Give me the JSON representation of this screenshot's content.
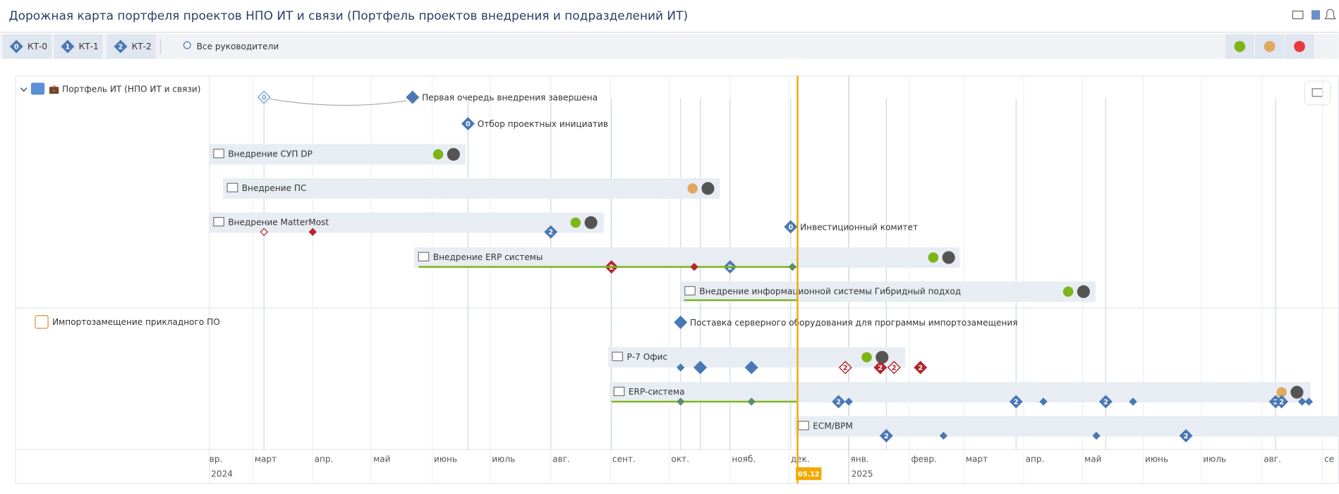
{
  "header": {
    "title": "Дорожная карта портфеля проектов НПО ИТ и связи (Портфель проектов внедрения и подразделений ИТ)"
  },
  "toolbar": {
    "filters": [
      {
        "badge": "0",
        "label": "КТ-0"
      },
      {
        "badge": "1",
        "label": "КТ-1"
      },
      {
        "badge": "2",
        "label": "КТ-2"
      }
    ],
    "managers": "Все руководители"
  },
  "groups": [
    {
      "label": "💼 Портфель ИТ (НПО ИТ и связи)"
    },
    {
      "label": "Импортозамещение прикладного ПО"
    }
  ],
  "milestones": [
    {
      "badge": "0"
    },
    {
      "label": "Первая очередь внедрения завершена"
    },
    {
      "badge": "0",
      "label": "Отбор проектных инициатив"
    },
    {
      "badge": "0",
      "label": "Инвестиционный комитет"
    },
    {
      "label": "Поставка серверного оборудования для программы импортозамещения"
    }
  ],
  "bars": [
    {
      "label": "Внедрение СУП DP",
      "status": "#7cb518",
      "badges": []
    },
    {
      "label": "Внедрение ПС",
      "status": "#e0a960",
      "badges": []
    },
    {
      "label": "Внедрение MatterMost",
      "status": "#7cb518",
      "badges": [
        "2"
      ]
    },
    {
      "label": "Внедрение ERP системы",
      "status": "#7cb518",
      "badges": [
        "2",
        "2"
      ]
    },
    {
      "label": "Внедрение информационной системы Гибридный подход",
      "status": "#7cb518",
      "badges": []
    },
    {
      "label": "Р-7 Офис",
      "status": "#7cb518",
      "badges": [
        "2",
        "2",
        "2",
        "2"
      ]
    },
    {
      "label": "ERP-система",
      "status": "#e0a960",
      "badges": [
        "2",
        "2",
        "2",
        "2",
        "2"
      ]
    },
    {
      "label": "ECM/BPM",
      "badges": [
        "2",
        "2"
      ]
    }
  ],
  "timeline": {
    "months": [
      "вр.",
      "март",
      "апр.",
      "май",
      "июнь",
      "июль",
      "авг.",
      "сент.",
      "окт.",
      "нояб.",
      "дек.",
      "янв.",
      "февр.",
      "март",
      "апр.",
      "май",
      "июнь",
      "июль",
      "авг.",
      "се"
    ],
    "years": [
      "2024",
      "2025"
    ],
    "today": "05.12"
  }
}
